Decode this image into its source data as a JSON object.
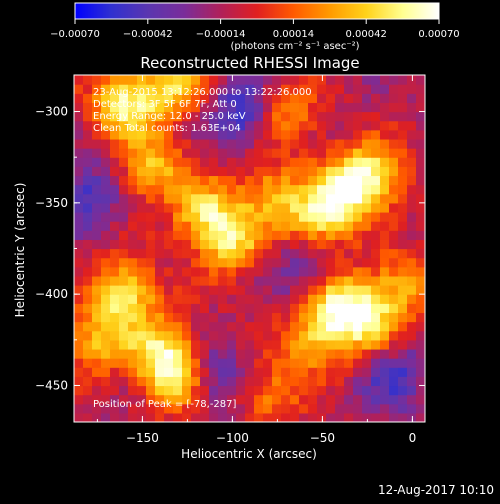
{
  "chart_data": {
    "type": "heatmap",
    "title": "Reconstructed RHESSI Image",
    "xlabel": "Heliocentric X (arcsec)",
    "ylabel": "Heliocentric Y (arcsec)",
    "xlim": [
      -188,
      7
    ],
    "ylim": [
      -470,
      -280
    ],
    "xticks": [
      -150,
      -100,
      -50,
      0
    ],
    "xtick_labels": [
      "−150",
      "−100",
      "−50",
      "0"
    ],
    "yticks": [
      -450,
      -400,
      -350,
      -300
    ],
    "ytick_labels": [
      "−450",
      "−400",
      "−350",
      "−300"
    ],
    "colorbar": {
      "range": [
        -0.0007,
        0.0007
      ],
      "ticks": [
        -0.0007,
        -0.00042,
        -0.00014,
        0.00014,
        0.00042,
        0.0007
      ],
      "tick_labels": [
        "−0.00070",
        "−0.00042",
        "−0.00014",
        "0.00014",
        "0.00042",
        "0.00070"
      ],
      "units_label": "(photons cm⁻² s⁻¹ asec⁻²)",
      "colors": [
        "#0000ff",
        "#3030d0",
        "#5a36b0",
        "#7a2d9a",
        "#b0205a",
        "#e02020",
        "#ff5a00",
        "#ff9a00",
        "#ffd21a",
        "#ffff90",
        "#ffffff"
      ]
    },
    "annotations": [
      "23-Aug-2015 13:12:26.000 to 13:22:26.000",
      "Detectors: 3F 5F 6F 7F, Att 0",
      "Energy Range: 12.0 - 25.0 keV",
      "Clean     Total counts: 1.63E+04"
    ],
    "peak_label": "Position of Peak = [-78,-287]",
    "blobs": [
      {
        "x": -160,
        "y": -295,
        "amp": 0.00065
      },
      {
        "x": -132,
        "y": -285,
        "amp": 0.00055
      },
      {
        "x": -145,
        "y": -330,
        "amp": 0.0005
      },
      {
        "x": -70,
        "y": -300,
        "amp": 0.0004
      },
      {
        "x": -80,
        "y": -345,
        "amp": 0.0004
      },
      {
        "x": -40,
        "y": -345,
        "amp": 0.0006
      },
      {
        "x": -22,
        "y": -335,
        "amp": 0.00062
      },
      {
        "x": -55,
        "y": -360,
        "amp": 0.0005
      },
      {
        "x": -115,
        "y": -355,
        "amp": 0.00055
      },
      {
        "x": -100,
        "y": -372,
        "amp": 0.0005
      },
      {
        "x": -160,
        "y": -400,
        "amp": 0.00062
      },
      {
        "x": -175,
        "y": -425,
        "amp": 0.00045
      },
      {
        "x": -140,
        "y": -430,
        "amp": 0.0005
      },
      {
        "x": -130,
        "y": -445,
        "amp": 0.0006
      },
      {
        "x": -40,
        "y": -405,
        "amp": 0.0006
      },
      {
        "x": -25,
        "y": -415,
        "amp": 0.0005
      },
      {
        "x": -55,
        "y": -425,
        "amp": 0.00045
      },
      {
        "x": -5,
        "y": -395,
        "amp": 0.0004
      },
      {
        "x": -80,
        "y": -455,
        "amp": 0.00035
      },
      {
        "x": -95,
        "y": -300,
        "amp": -0.00045
      },
      {
        "x": -110,
        "y": -445,
        "amp": -0.0004
      },
      {
        "x": -180,
        "y": -345,
        "amp": -0.00035
      },
      {
        "x": -60,
        "y": -385,
        "amp": -0.0003
      },
      {
        "x": -10,
        "y": -445,
        "amp": -0.00035
      }
    ]
  },
  "footer": {
    "timestamp": "12-Aug-2017 10:10"
  }
}
